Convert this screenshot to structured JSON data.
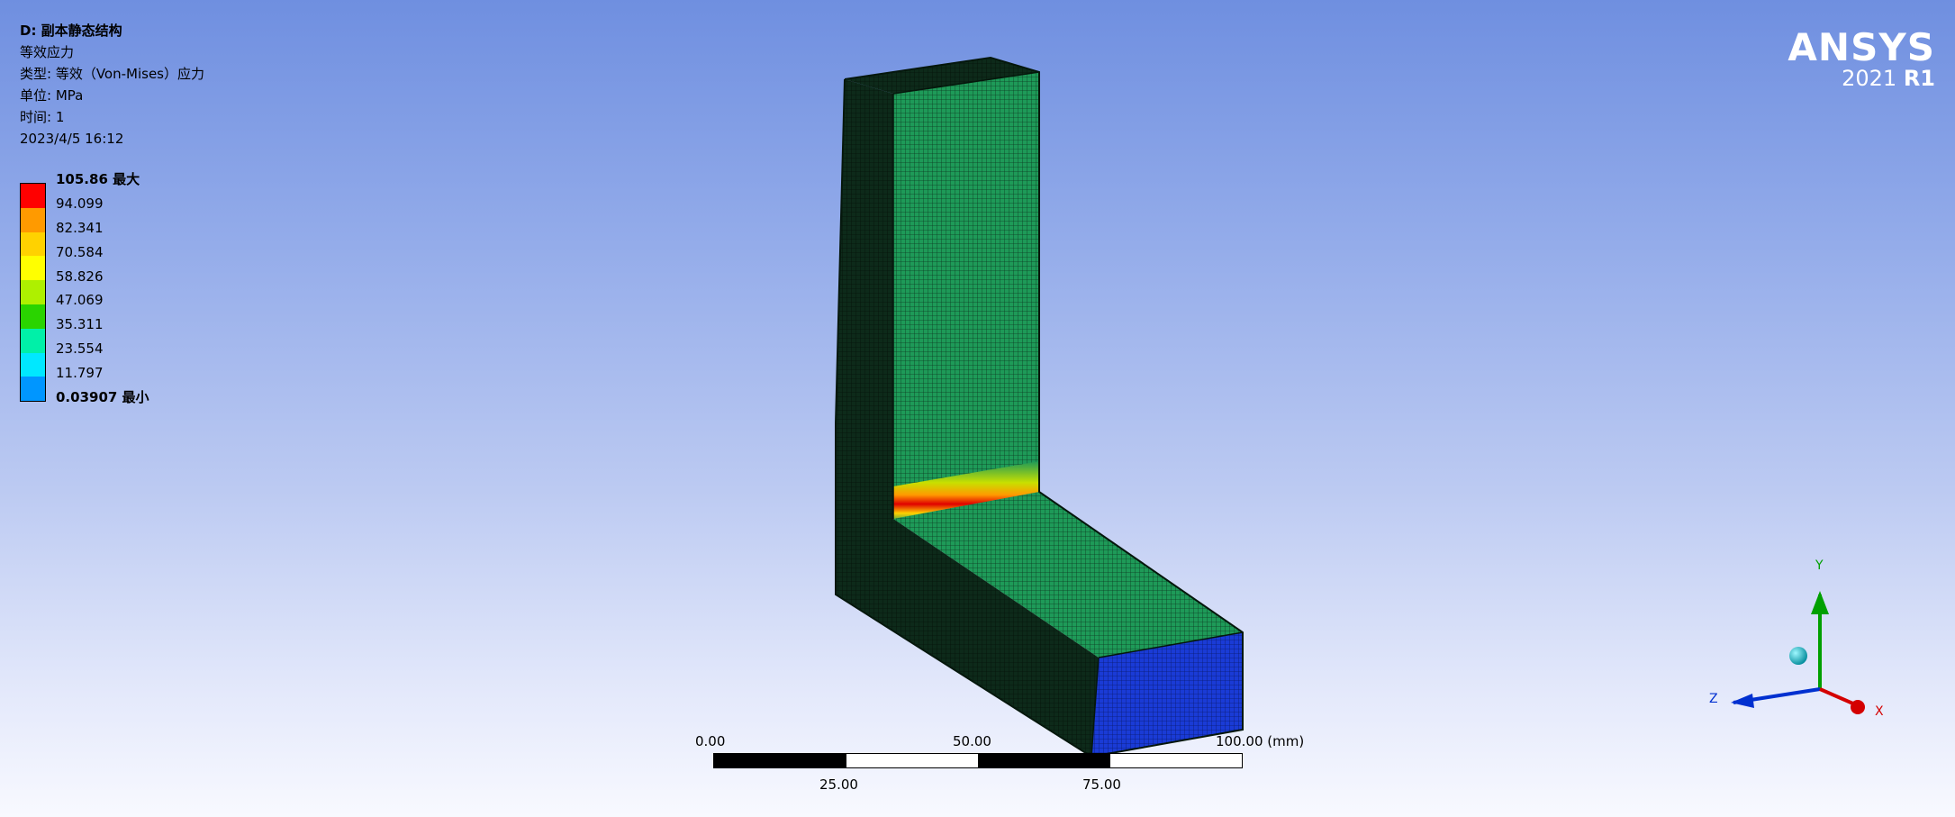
{
  "info": {
    "title": "D: 副本静态结构",
    "result_name": "等效应力",
    "type_line": "类型: 等效（Von-Mises）应力",
    "unit_line": "单位: MPa",
    "time_line": "时间: 1",
    "date_line": "2023/4/5 16:12"
  },
  "legend": {
    "labels": [
      "105.86 最大",
      "94.099",
      "82.341",
      "70.584",
      "58.826",
      "47.069",
      "35.311",
      "23.554",
      "11.797",
      "0.03907 最小"
    ],
    "colors": [
      "#ff0000",
      "#ff9a00",
      "#ffd200",
      "#ffff00",
      "#aef000",
      "#2ad400",
      "#00f0a8",
      "#00e8ff",
      "#0096ff",
      "#0000ff"
    ]
  },
  "logo": {
    "brand": "ANSYS",
    "year": "2021",
    "release": "R1"
  },
  "scale_bar": {
    "tick_0": "0.00",
    "tick_25": "25.00",
    "tick_50": "50.00",
    "tick_75": "75.00",
    "tick_100": "100.00 (mm)"
  },
  "triad": {
    "x_label": "X",
    "y_label": "Y",
    "z_label": "Z"
  },
  "colors": {
    "mesh_green": "#1c8a4e",
    "base_blue": "#1a3bd6",
    "hotspot_red": "#ff0000",
    "axis_x": "#d40000",
    "axis_y": "#00a000",
    "axis_z": "#0030d0"
  }
}
